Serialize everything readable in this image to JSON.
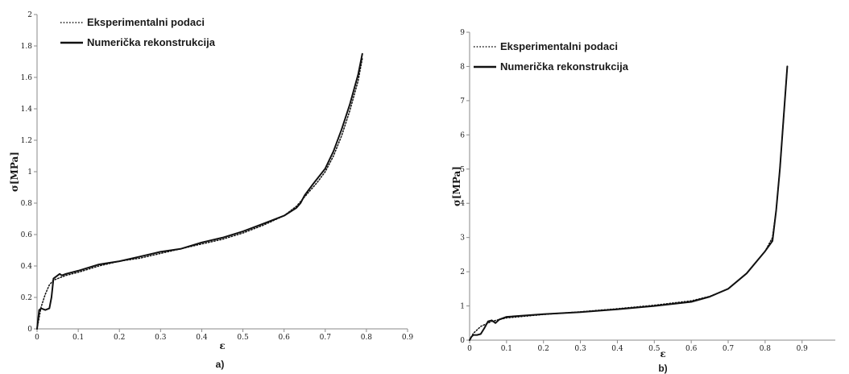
{
  "chart_data": [
    {
      "type": "line",
      "panel_label": "a)",
      "xlabel": "ε",
      "ylabel": "σ[MPa]",
      "xlim": [
        0,
        0.9
      ],
      "ylim": [
        0,
        2
      ],
      "x_ticks": [
        "0",
        "0.1",
        "0.2",
        "0.3",
        "0.4",
        "0.5",
        "0.6",
        "0.7",
        "0.8",
        "0.9"
      ],
      "y_ticks": [
        "0",
        "0.2",
        "0.4",
        "0.6",
        "0.8",
        "1",
        "1.2",
        "1.4",
        "1.6",
        "1.8",
        "2"
      ],
      "legend_position": "top-left",
      "grid": false,
      "series": [
        {
          "name": "Eksperimentalni podaci",
          "style": "dotted",
          "x": [
            0,
            0.01,
            0.02,
            0.03,
            0.04,
            0.05,
            0.07,
            0.1,
            0.15,
            0.2,
            0.25,
            0.3,
            0.35,
            0.4,
            0.45,
            0.5,
            0.55,
            0.6,
            0.63,
            0.65,
            0.68,
            0.7,
            0.72,
            0.74,
            0.76,
            0.78,
            0.79
          ],
          "y": [
            0,
            0.14,
            0.22,
            0.28,
            0.31,
            0.32,
            0.34,
            0.36,
            0.4,
            0.43,
            0.45,
            0.48,
            0.51,
            0.54,
            0.57,
            0.61,
            0.66,
            0.72,
            0.78,
            0.84,
            0.93,
            1.0,
            1.1,
            1.23,
            1.39,
            1.58,
            1.72
          ]
        },
        {
          "name": "Numerička rekonstrukcija",
          "style": "solid",
          "x": [
            0,
            0.005,
            0.01,
            0.02,
            0.03,
            0.035,
            0.04,
            0.05,
            0.055,
            0.06,
            0.07,
            0.1,
            0.15,
            0.2,
            0.25,
            0.3,
            0.35,
            0.4,
            0.45,
            0.5,
            0.55,
            0.6,
            0.63,
            0.64,
            0.65,
            0.67,
            0.7,
            0.72,
            0.74,
            0.76,
            0.78,
            0.79
          ],
          "y": [
            0,
            0.12,
            0.13,
            0.12,
            0.13,
            0.2,
            0.32,
            0.34,
            0.35,
            0.34,
            0.35,
            0.37,
            0.41,
            0.43,
            0.46,
            0.49,
            0.51,
            0.55,
            0.58,
            0.62,
            0.67,
            0.72,
            0.77,
            0.8,
            0.85,
            0.92,
            1.02,
            1.13,
            1.27,
            1.43,
            1.62,
            1.75
          ]
        }
      ]
    },
    {
      "type": "line",
      "panel_label": "b)",
      "xlabel": "ε",
      "ylabel": "σ[MPa]",
      "xlim": [
        0,
        0.99
      ],
      "ylim": [
        0,
        9
      ],
      "x_ticks": [
        "0",
        "0.1",
        "0.2",
        "0.3",
        "0.4",
        "0.5",
        "0.6",
        "0.7",
        "0.8",
        "0.9"
      ],
      "y_ticks": [
        "0",
        "1",
        "2",
        "3",
        "4",
        "5",
        "6",
        "7",
        "8",
        "9"
      ],
      "legend_position": "top-left",
      "grid": false,
      "series": [
        {
          "name": "Eksperimentalni podaci",
          "style": "dotted",
          "x": [
            0,
            0.01,
            0.02,
            0.03,
            0.05,
            0.06,
            0.08,
            0.1,
            0.2,
            0.3,
            0.4,
            0.5,
            0.6,
            0.65,
            0.7,
            0.75,
            0.8,
            0.82,
            0.83,
            0.84,
            0.85,
            0.86
          ],
          "y": [
            0,
            0.2,
            0.3,
            0.4,
            0.5,
            0.55,
            0.6,
            0.65,
            0.75,
            0.83,
            0.92,
            1.02,
            1.15,
            1.28,
            1.5,
            1.95,
            2.6,
            3.0,
            3.8,
            5.0,
            6.5,
            8.0
          ]
        },
        {
          "name": "Numerička rekonstrukcija",
          "style": "solid",
          "x": [
            0,
            0.005,
            0.01,
            0.02,
            0.03,
            0.04,
            0.05,
            0.06,
            0.07,
            0.08,
            0.1,
            0.2,
            0.3,
            0.4,
            0.5,
            0.6,
            0.65,
            0.7,
            0.75,
            0.8,
            0.82,
            0.83,
            0.84,
            0.85,
            0.86
          ],
          "y": [
            0,
            0.1,
            0.15,
            0.15,
            0.18,
            0.35,
            0.55,
            0.58,
            0.5,
            0.6,
            0.68,
            0.76,
            0.82,
            0.9,
            1.0,
            1.12,
            1.27,
            1.5,
            1.95,
            2.6,
            2.9,
            3.8,
            5.0,
            6.5,
            8.0
          ]
        }
      ]
    }
  ]
}
